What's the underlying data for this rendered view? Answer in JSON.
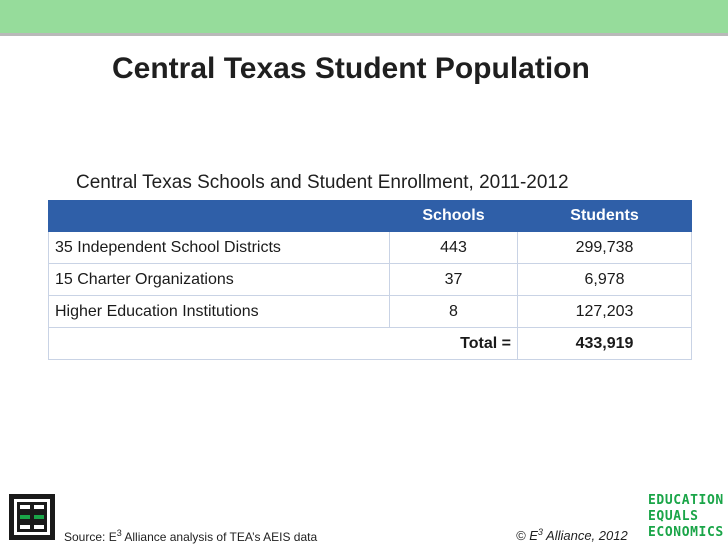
{
  "slide": {
    "title": "Central Texas Student Population"
  },
  "table": {
    "caption": "Central Texas Schools and Student Enrollment, 2011-2012",
    "headers": {
      "name": "",
      "schools": "Schools",
      "students": "Students"
    },
    "rows": [
      {
        "name": "35 Independent School Districts",
        "schools": "443",
        "students": "299,738"
      },
      {
        "name": "15 Charter Organizations",
        "schools": "37",
        "students": "6,978"
      },
      {
        "name": "Higher Education Institutions",
        "schools": "8",
        "students": "127,203"
      }
    ],
    "total": {
      "label": "Total =",
      "students": "433,919"
    }
  },
  "footer": {
    "source_prefix": "Source: E",
    "source_sup": "3",
    "source_suffix": " Alliance analysis of TEA’s AEIS data",
    "copyright_prefix": "© E",
    "copyright_sup": "3",
    "copyright_suffix": " Alliance, 2012",
    "logo_words": [
      "EDUCATION",
      "EQUALS",
      "ECONOMICS"
    ]
  },
  "colors": {
    "top_band": "#96dc9b",
    "table_header": "#2f5fa8",
    "logo_green": "#1aa548",
    "logo_dark": "#1a1a1a"
  }
}
